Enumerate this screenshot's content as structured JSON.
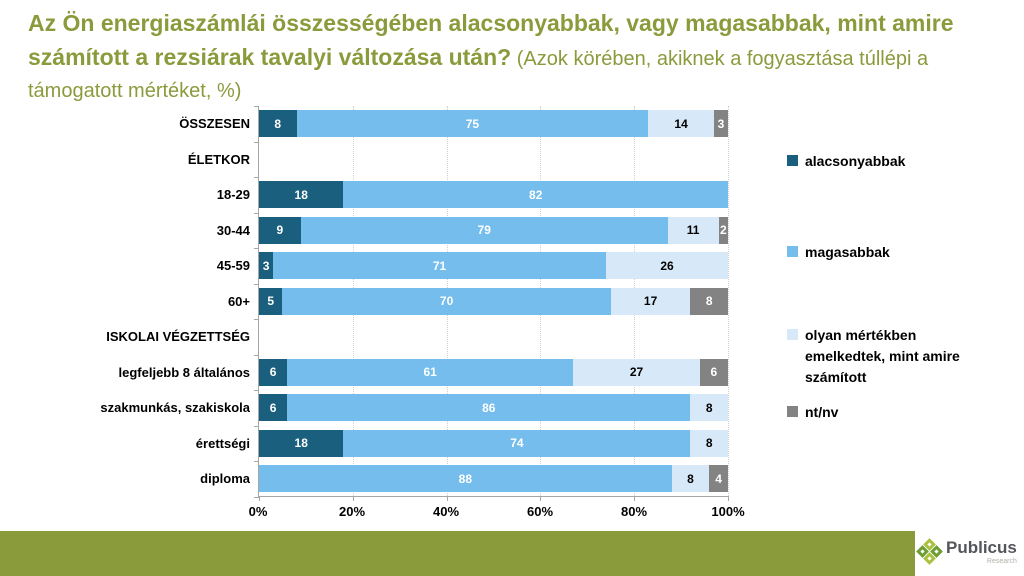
{
  "title": {
    "bold": "Az Ön energiaszámlái összességében alacsonyabbak, vagy magasabbak, mint amire számított a rezsiárak tavalyi változása után?",
    "normal": " (Azok körében, akiknek a fogyasztása túllépi a támogatott mértéket, %)",
    "color": "#8A9B3C"
  },
  "chart_data": {
    "type": "bar",
    "orientation": "horizontal",
    "stacked": true,
    "unit": "%",
    "xlim": [
      0,
      100
    ],
    "grid": "vertical-dotted",
    "legend_position": "right",
    "categories": [
      "ÖSSZESEN",
      "ÉLETKOR",
      "18-29",
      "30-44",
      "45-59",
      "60+",
      "ISKOLAI VÉGZETTSÉG",
      "legfeljebb 8 általános",
      "szakmunkás, szakiskola",
      "érettségi",
      "diploma"
    ],
    "header_rows": [
      1,
      6
    ],
    "series": [
      {
        "name": "alacsonyabbak",
        "color": "#1B5F7E",
        "label_color": "#FFFFFF",
        "values": [
          8,
          null,
          18,
          9,
          3,
          5,
          null,
          6,
          6,
          18,
          0
        ]
      },
      {
        "name": "magasabbak",
        "color": "#74BDEC",
        "label_color": "#FFFFFF",
        "values": [
          75,
          null,
          82,
          79,
          71,
          70,
          null,
          61,
          86,
          74,
          88
        ]
      },
      {
        "name": "olyan mértékben emelkedtek, mint amire számított",
        "color": "#D7E9F8",
        "label_color": "#000000",
        "values": [
          14,
          null,
          0,
          11,
          26,
          17,
          null,
          27,
          8,
          8,
          8
        ]
      },
      {
        "name": "nt/nv",
        "color": "#838383",
        "label_color": "#FFFFFF",
        "values": [
          3,
          null,
          0,
          2,
          0,
          8,
          null,
          6,
          0,
          0,
          4
        ]
      }
    ],
    "x_ticks": [
      "0%",
      "20%",
      "40%",
      "60%",
      "80%",
      "100%"
    ]
  },
  "footer": {
    "brand": "Publicus",
    "brand_sub": "Research",
    "bar_color": "#8A9B3C"
  }
}
